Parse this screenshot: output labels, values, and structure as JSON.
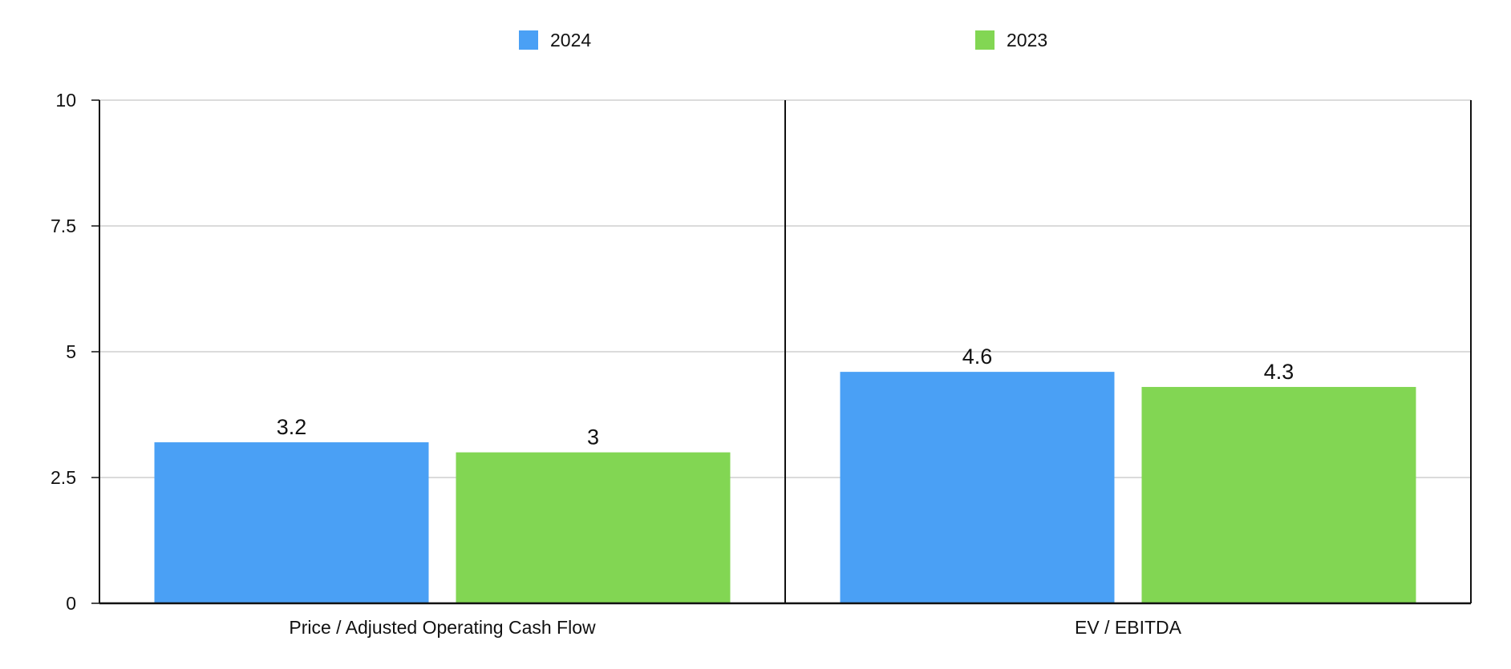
{
  "chart_data": {
    "type": "bar",
    "title": "",
    "xlabel": "",
    "ylabel": "",
    "categories": [
      "Price / Adjusted Operating Cash Flow",
      "EV / EBITDA"
    ],
    "series": [
      {
        "name": "2024",
        "values": [
          3.2,
          4.6
        ],
        "color": "#4aa0f5"
      },
      {
        "name": "2023",
        "values": [
          3,
          4.3
        ],
        "color": "#82d653"
      }
    ],
    "ylim": [
      0,
      10
    ],
    "yticks": [
      {
        "value": 0,
        "label": "0"
      },
      {
        "value": 2.5,
        "label": "2.5"
      },
      {
        "value": 5,
        "label": "5"
      },
      {
        "value": 7.5,
        "label": "7.5"
      },
      {
        "value": 10,
        "label": "10"
      }
    ],
    "data_labels": [
      [
        "3.2",
        "4.6"
      ],
      [
        "3",
        "4.3"
      ]
    ],
    "grid": true,
    "legend": "top-center"
  }
}
